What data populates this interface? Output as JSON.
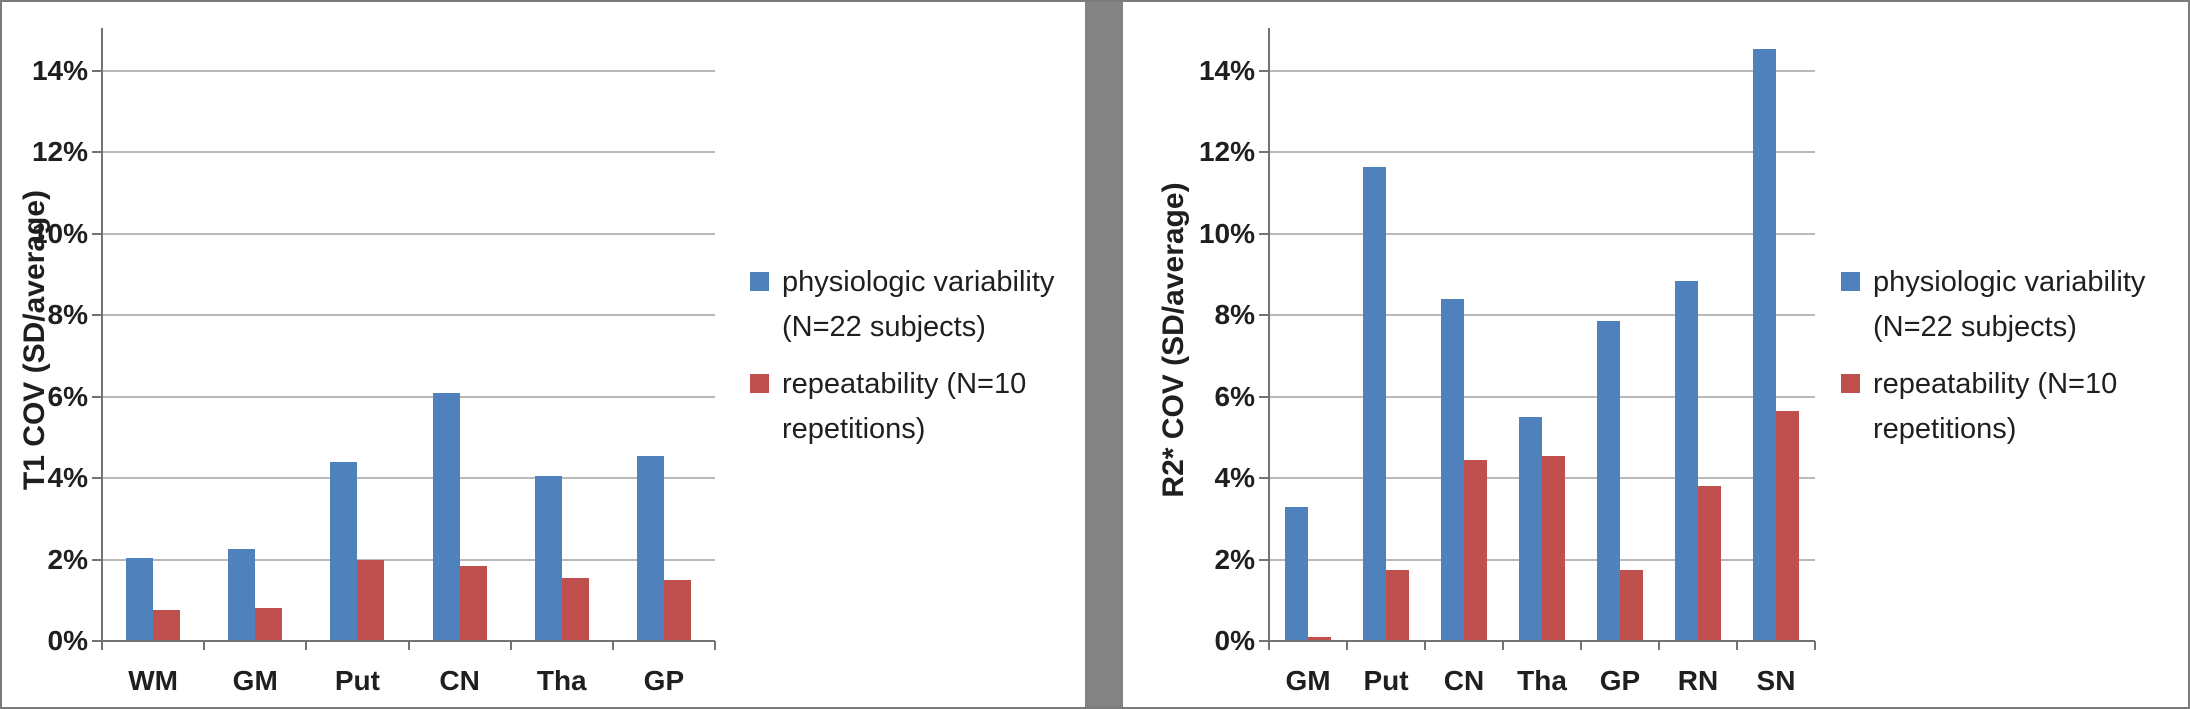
{
  "figure": {
    "description": "Two-panel grouped bar chart comparing physiologic variability and repeatability COV",
    "accent_colors": {
      "series_blue": "#4F81BD",
      "series_red": "#C0504D",
      "divider_gray": "#838383"
    }
  },
  "chart_data": [
    {
      "type": "bar",
      "title": "",
      "xlabel": "",
      "ylabel": "T1 COV (SD/average)",
      "categories": [
        "WM",
        "GM",
        "Put",
        "CN",
        "Tha",
        "GP"
      ],
      "series": [
        {
          "name": "physiologic variability (N=22 subjects)",
          "color": "#4F81BD",
          "values": [
            2.05,
            2.25,
            4.4,
            6.1,
            4.05,
            4.55
          ]
        },
        {
          "name": "repeatability (N=10 repetitions)",
          "color": "#C0504D",
          "values": [
            0.75,
            0.8,
            2.0,
            1.85,
            1.55,
            1.5
          ]
        }
      ],
      "ylim": [
        0,
        14
      ],
      "ytick_step": 2,
      "ytick_labels": [
        "0%",
        "2%",
        "4%",
        "6%",
        "8%",
        "10%",
        "12%",
        "14%"
      ],
      "grid": true,
      "legend_position": "right"
    },
    {
      "type": "bar",
      "title": "",
      "xlabel": "",
      "ylabel": "R2* COV (SD/average)",
      "categories": [
        "GM",
        "Put",
        "CN",
        "Tha",
        "GP",
        "RN",
        "SN"
      ],
      "series": [
        {
          "name": "physiologic variability (N=22 subjects)",
          "color": "#4F81BD",
          "values": [
            3.3,
            11.65,
            8.4,
            5.5,
            7.85,
            8.85,
            14.55
          ]
        },
        {
          "name": "repeatability (N=10 repetitions)",
          "color": "#C0504D",
          "values": [
            0.1,
            1.75,
            4.45,
            4.55,
            1.75,
            3.8,
            5.65
          ]
        }
      ],
      "ylim": [
        0,
        14
      ],
      "ytick_step": 2,
      "ytick_labels": [
        "0%",
        "2%",
        "4%",
        "6%",
        "8%",
        "10%",
        "12%",
        "14%"
      ],
      "grid": true,
      "legend_position": "right"
    }
  ]
}
